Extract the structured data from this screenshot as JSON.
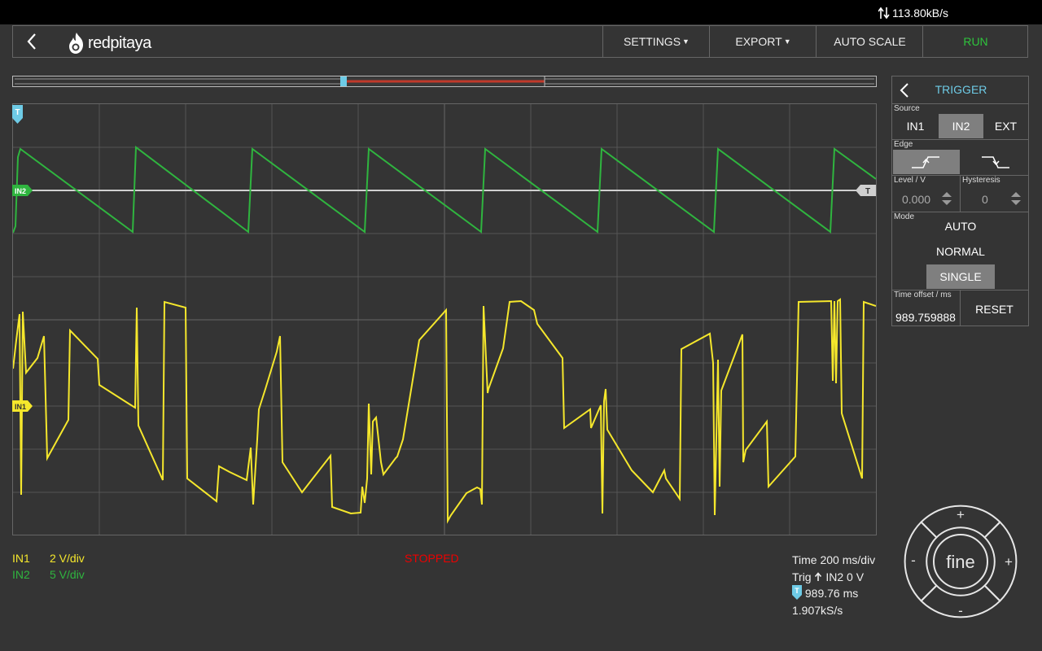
{
  "topbar": {
    "bandwidth": "113.80kB/s"
  },
  "header": {
    "logo_text": "redpitaya",
    "settings_label": "SETTINGS",
    "export_label": "EXPORT",
    "autoscale_label": "AUTO SCALE",
    "run_label": "RUN"
  },
  "trigger": {
    "title": "TRIGGER",
    "source_label": "Source",
    "sources": [
      "IN1",
      "IN2",
      "EXT"
    ],
    "selected_source": "IN2",
    "edge_label": "Edge",
    "selected_edge": "rising",
    "level_label": "Level / V",
    "level_value": "0.000",
    "hysteresis_label": "Hysteresis",
    "hysteresis_value": "0",
    "mode_label": "Mode",
    "modes": [
      "AUTO",
      "NORMAL",
      "SINGLE"
    ],
    "selected_mode": "SINGLE",
    "time_offset_label": "Time offset / ms",
    "time_offset_value": "989.759888",
    "reset_label": "RESET"
  },
  "plot": {
    "trigger_marker": "T",
    "in2_marker": "IN2",
    "in1_marker": "IN1",
    "level_marker": "T",
    "colors": {
      "in1": "#f5e72c",
      "in2": "#2fb53f",
      "trigger": "#6ecbe6",
      "grid": "#555555"
    },
    "grid_divisions": {
      "x": 10,
      "y": 10
    }
  },
  "info": {
    "channels": [
      {
        "name": "IN1",
        "scale": "2 V/div",
        "color": "#f5e72c"
      },
      {
        "name": "IN2",
        "scale": "5 V/div",
        "color": "#2fb53f"
      }
    ],
    "status": "STOPPED",
    "time_scale": "Time 200 ms/div",
    "trig_prefix": "Trig",
    "trig_info": "IN2 0 V",
    "offset_marker": "T",
    "offset_value": "989.76 ms",
    "sample_rate": "1.907kS/s"
  },
  "dpad": {
    "center_label": "fine",
    "up": "+",
    "down": "-",
    "left": "-",
    "right": "+"
  }
}
